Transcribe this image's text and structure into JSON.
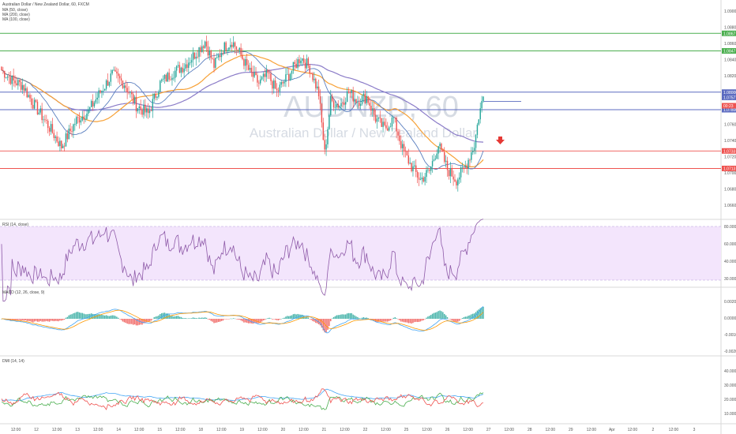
{
  "header": {
    "title": "Australian Dollar / New Zealand Dollar, 60, FXCM",
    "indicators": [
      "MA (50, close)",
      "MA (200, close)",
      "MA (100, close)"
    ]
  },
  "watermark": {
    "symbol": "AUDNZD, 60",
    "name": "Australian Dollar / New Zealand Dollar"
  },
  "panes": {
    "rsi_title": "RSI (14, close)",
    "macd_title": "MACD (12, 26, close, 9)",
    "dmi_title": "DMI (14, 14)"
  },
  "colors": {
    "bull": "#26a69a",
    "bear": "#ef5350",
    "ma50": "#5b7fbf",
    "ma100": "#f7a136",
    "ma200": "#8b7cc8",
    "hline_green": "#4caf50",
    "hline_blue": "#5c6bc0",
    "hline_red": "#ef5350",
    "rsi_band": "#f3e5fc",
    "rsi_line": "#8e5aa8",
    "macd_line": "#42a5f5",
    "signal_line": "#ff9800",
    "di_plus": "#4caf50",
    "di_minus": "#ef5350",
    "adx": "#42a5f5",
    "arrow": "#e53935"
  },
  "price_axis": [
    "1.09000",
    "1.08800",
    "1.08600",
    "1.08400",
    "1.08200",
    "1.08000",
    "1.07800",
    "1.07600",
    "1.07400",
    "1.07200",
    "1.07000",
    "1.06800",
    "1.06600"
  ],
  "price_tags": [
    {
      "text": "1.0867",
      "color": "#4caf50"
    },
    {
      "text": "1.0847",
      "color": "#4caf50"
    },
    {
      "text": "1.08000",
      "color": "#5c6bc0"
    },
    {
      "text": "1.07800",
      "color": "#5c6bc0"
    },
    {
      "text": "1.07577",
      "color": "#5c6bc0"
    },
    {
      "text": "00:23",
      "color": "#ef5350"
    },
    {
      "text": "1.0733",
      "color": "#ef5350"
    },
    {
      "text": "1.0713",
      "color": "#ef5350"
    }
  ],
  "rsi_axis": [
    "80.0000",
    "60.0000",
    "40.0000",
    "30.0000"
  ],
  "macd_axis": [
    "0.0020",
    "0.0000",
    "-0.0010",
    "-0.0020"
  ],
  "dmi_axis": [
    "40.0000",
    "30.0000",
    "20.0000",
    "10.0000"
  ],
  "time_axis": [
    "12:00",
    "12",
    "12:00",
    "13",
    "12:00",
    "14",
    "12:00",
    "15",
    "12:00",
    "18",
    "12:00",
    "19",
    "12:00",
    "20",
    "12:00",
    "21",
    "12:00",
    "22",
    "12:00",
    "25",
    "12:00",
    "26",
    "12:00",
    "27",
    "12:00",
    "28",
    "12:00",
    "29",
    "12:00",
    "Apr",
    "12:00",
    "2",
    "12:00",
    "3"
  ],
  "chart_data": {
    "type": "candlestick",
    "symbol": "AUD/NZD",
    "timeframe": "60",
    "y_range": [
      1.0655,
      1.0905
    ],
    "levels": {
      "green": [
        1.0867,
        1.0847
      ],
      "blue": [
        1.08,
        1.078
      ],
      "red": [
        1.0733,
        1.0713
      ]
    },
    "anchors": [
      [
        0,
        1.0825
      ],
      [
        8,
        1.0812
      ],
      [
        14,
        1.0808
      ],
      [
        20,
        1.079
      ],
      [
        30,
        1.0765
      ],
      [
        40,
        1.0738
      ],
      [
        50,
        1.0768
      ],
      [
        58,
        1.0778
      ],
      [
        66,
        1.08
      ],
      [
        74,
        1.082
      ],
      [
        82,
        1.081
      ],
      [
        90,
        1.0785
      ],
      [
        98,
        1.0775
      ],
      [
        106,
        1.081
      ],
      [
        114,
        1.0822
      ],
      [
        122,
        1.083
      ],
      [
        130,
        1.0845
      ],
      [
        136,
        1.0858
      ],
      [
        142,
        1.083
      ],
      [
        148,
        1.085
      ],
      [
        154,
        1.0858
      ],
      [
        160,
        1.0842
      ],
      [
        166,
        1.0822
      ],
      [
        172,
        1.081
      ],
      [
        178,
        1.082
      ],
      [
        184,
        1.08
      ],
      [
        190,
        1.0815
      ],
      [
        196,
        1.083
      ],
      [
        200,
        1.084
      ],
      [
        206,
        1.0828
      ],
      [
        212,
        1.0798
      ],
      [
        216,
        1.073
      ],
      [
        220,
        1.079
      ],
      [
        226,
        1.0785
      ],
      [
        232,
        1.08
      ],
      [
        238,
        1.079
      ],
      [
        244,
        1.0795
      ],
      [
        250,
        1.077
      ],
      [
        256,
        1.0758
      ],
      [
        262,
        1.077
      ],
      [
        268,
        1.0735
      ],
      [
        274,
        1.0715
      ],
      [
        280,
        1.07
      ],
      [
        286,
        1.071
      ],
      [
        292,
        1.074
      ],
      [
        298,
        1.0712
      ],
      [
        304,
        1.07
      ],
      [
        310,
        1.0715
      ],
      [
        316,
        1.074
      ],
      [
        319,
        1.0773
      ],
      [
        322,
        1.0795
      ]
    ]
  }
}
